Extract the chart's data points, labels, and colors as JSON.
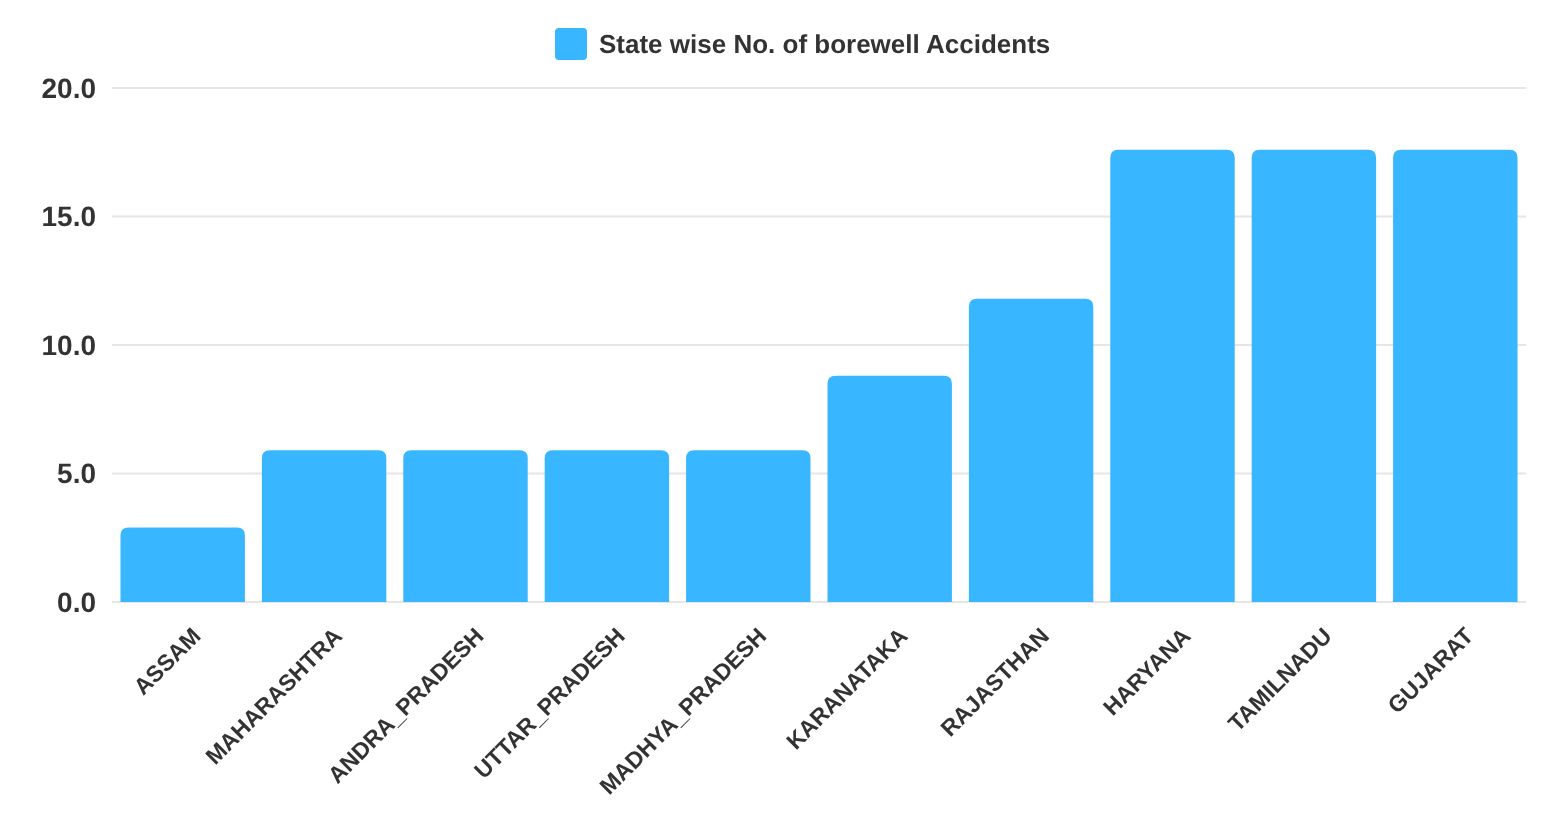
{
  "chart_data": {
    "type": "bar",
    "categories": [
      "ASSAM",
      "MAHARASHTRA",
      "ANDRA_PRADESH",
      "UTTAR_PRADESH",
      "MADHYA_PRADESH",
      "KARANATAKA",
      "RAJASTHAN",
      "HARYANA",
      "TAMILNADU",
      "GUJARAT"
    ],
    "series": [
      {
        "name": "State wise No. of borewell Accidents",
        "color": "#38b6ff",
        "values": [
          2.9,
          5.9,
          5.9,
          5.9,
          5.9,
          8.8,
          11.8,
          17.6,
          17.6,
          17.6
        ]
      }
    ],
    "ylim": [
      0,
      20
    ],
    "yticks": [
      {
        "value": 0,
        "label": "0.0"
      },
      {
        "value": 5,
        "label": "5.0"
      },
      {
        "value": 10,
        "label": "10.0"
      },
      {
        "value": 15,
        "label": "15.0"
      },
      {
        "value": 20,
        "label": "20.0"
      }
    ],
    "grid": "y",
    "legend": "top"
  }
}
